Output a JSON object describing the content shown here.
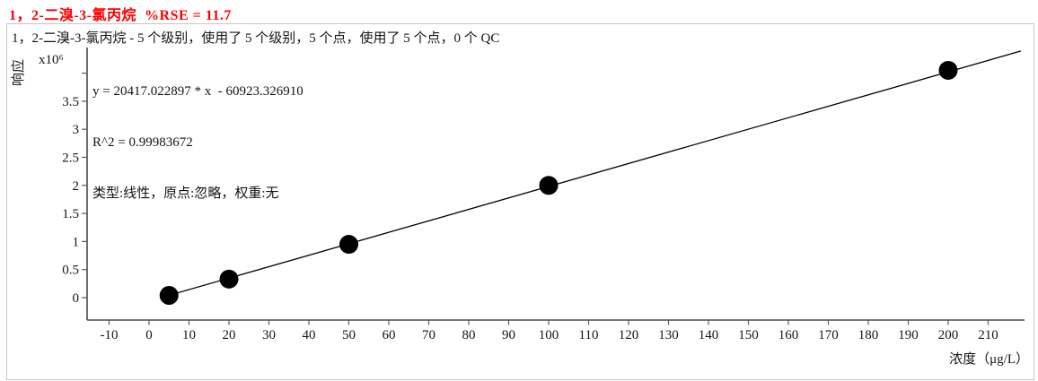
{
  "title": {
    "text": "1，2-二溴-3-氯丙烷  %RSE = 11.7",
    "color": "#ff0000",
    "rse_percent": 11.7
  },
  "chart_data": {
    "type": "scatter",
    "title": "1，2-二溴-3-氯丙烷  %RSE = 11.7",
    "subtitle": "1，2-二溴-3-氯丙烷 - 5 个级别，使用了 5 个级别，5 个点，使用了 5 个点，0 个 QC",
    "xlabel": "浓度（μg/L）",
    "ylabel": "响应",
    "y_multiplier": "x10⁶",
    "grid": false,
    "legend": false,
    "xlim": [
      -15.5,
      219
    ],
    "ylim": [
      -400000,
      4460000
    ],
    "x_ticks": [
      -10,
      0,
      10,
      20,
      30,
      40,
      50,
      60,
      70,
      80,
      90,
      100,
      110,
      120,
      130,
      140,
      150,
      160,
      170,
      180,
      190,
      200,
      210
    ],
    "y_ticks": [
      {
        "value": 0,
        "label": "0"
      },
      {
        "value": 500000,
        "label": "0.5"
      },
      {
        "value": 1000000,
        "label": "1"
      },
      {
        "value": 1500000,
        "label": "1.5"
      },
      {
        "value": 2000000,
        "label": "2"
      },
      {
        "value": 2500000,
        "label": "2.5"
      },
      {
        "value": 3000000,
        "label": "3"
      },
      {
        "value": 3500000,
        "label": "3.5"
      },
      {
        "value": 4000000,
        "label": ""
      }
    ],
    "points": [
      {
        "x": 5,
        "y": 40000
      },
      {
        "x": 20,
        "y": 330000
      },
      {
        "x": 50,
        "y": 950000
      },
      {
        "x": 100,
        "y": 2000000
      },
      {
        "x": 200,
        "y": 4050000
      }
    ],
    "fit": {
      "slope": 20417.022897,
      "intercept": -60923.32691,
      "r2": 0.99983672,
      "equation_text": "y = 20417.022897 * x  - 60923.326910",
      "r2_text": "R^2 = 0.99983672",
      "model_text": "类型:线性，原点:忽略，权重:无"
    }
  }
}
